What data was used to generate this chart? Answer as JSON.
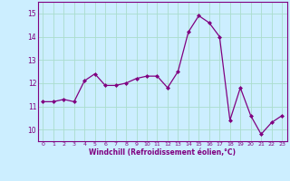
{
  "x": [
    0,
    1,
    2,
    3,
    4,
    5,
    6,
    7,
    8,
    9,
    10,
    11,
    12,
    13,
    14,
    15,
    16,
    17,
    18,
    19,
    20,
    21,
    22,
    23
  ],
  "y": [
    11.2,
    11.2,
    11.3,
    11.2,
    12.1,
    12.4,
    11.9,
    11.9,
    12.0,
    12.2,
    12.3,
    12.3,
    11.8,
    12.5,
    14.2,
    14.9,
    14.6,
    14.0,
    10.4,
    11.8,
    10.6,
    9.8,
    10.3,
    10.6
  ],
  "line_color": "#800080",
  "marker_color": "#800080",
  "bg_color": "#cceeff",
  "grid_color": "#aaddcc",
  "xlabel": "Windchill (Refroidissement éolien,°C)",
  "ylim": [
    9.5,
    15.5
  ],
  "yticks": [
    10,
    11,
    12,
    13,
    14,
    15
  ],
  "xticks": [
    0,
    1,
    2,
    3,
    4,
    5,
    6,
    7,
    8,
    9,
    10,
    11,
    12,
    13,
    14,
    15,
    16,
    17,
    18,
    19,
    20,
    21,
    22,
    23
  ]
}
